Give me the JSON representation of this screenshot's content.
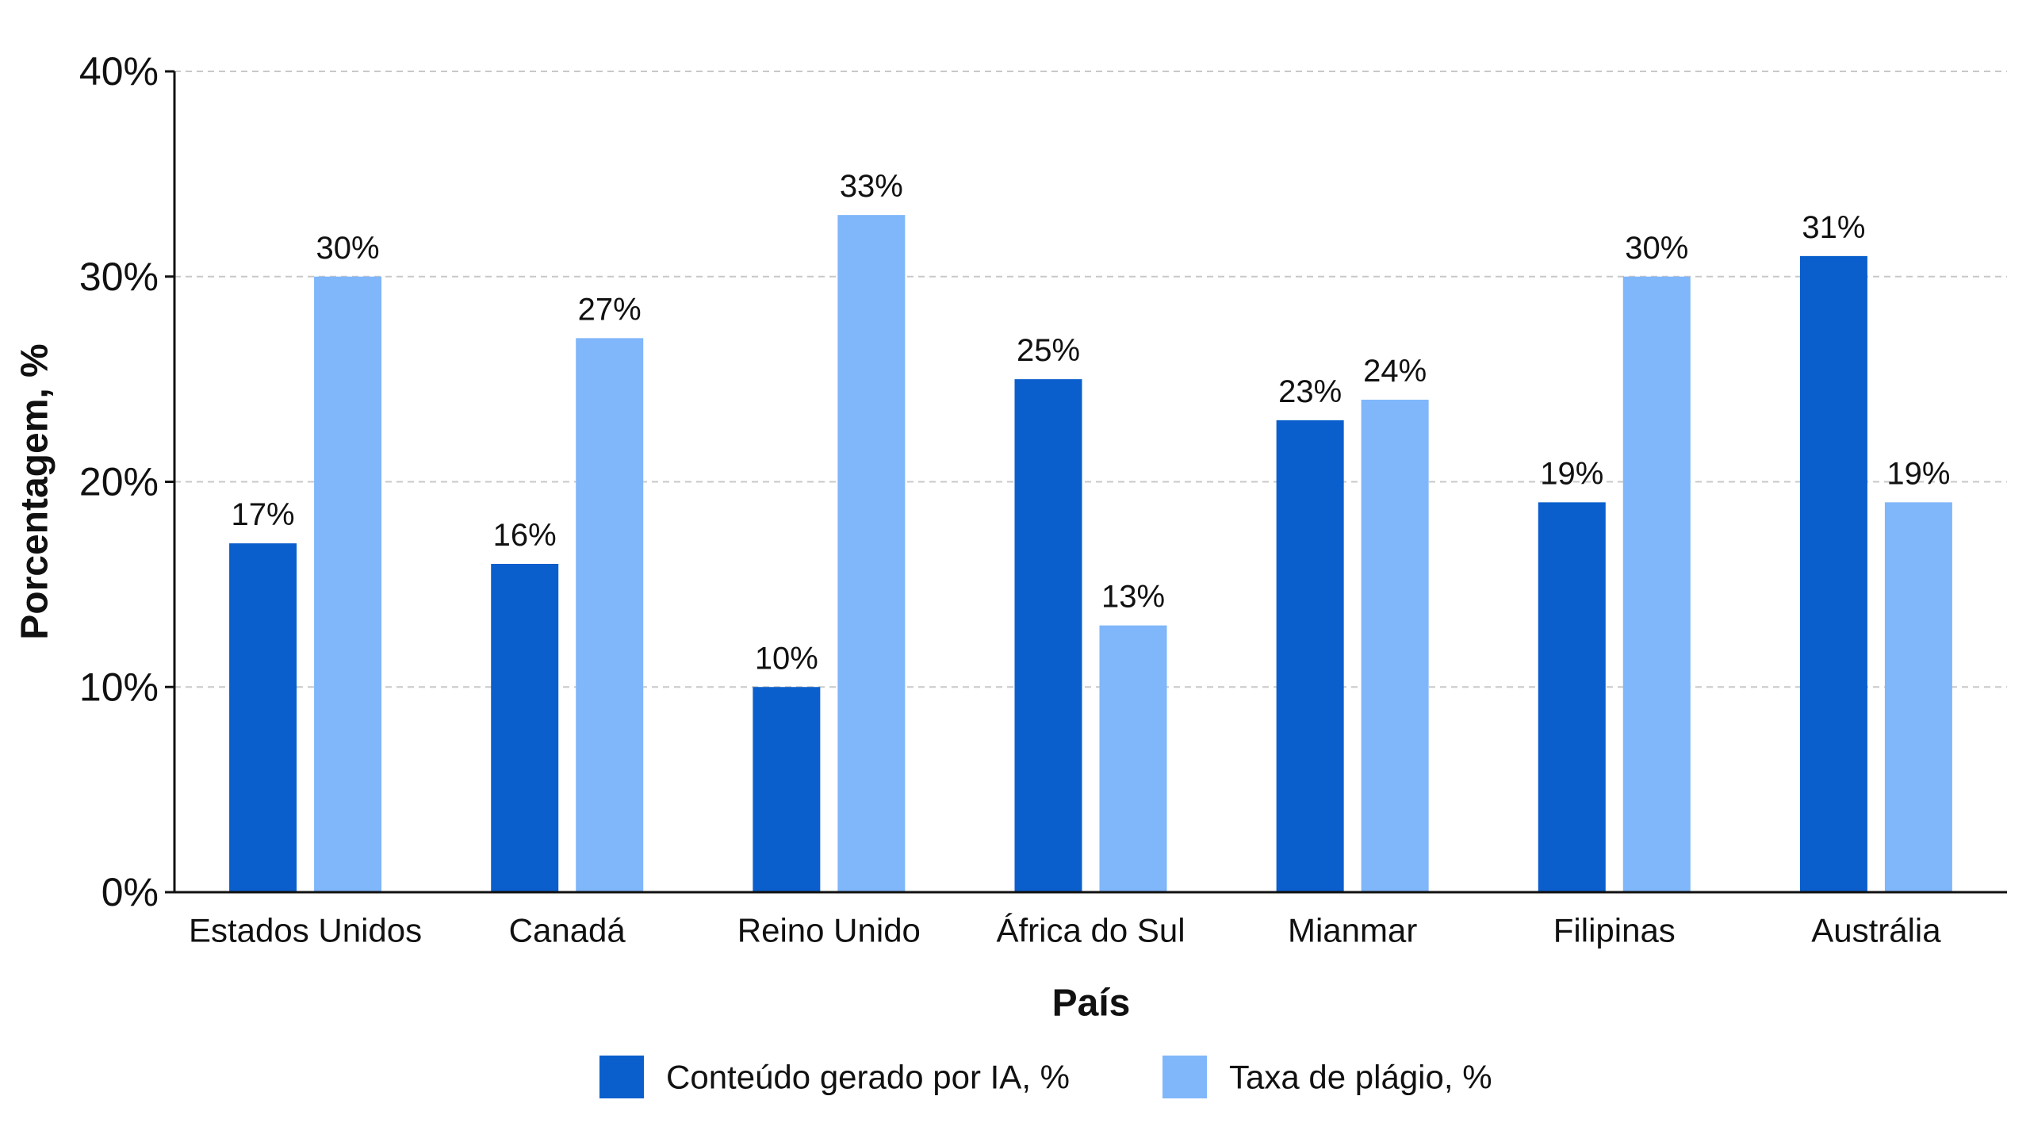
{
  "chart_data": {
    "type": "bar",
    "x_label": "País",
    "y_label": "Porcentagem, %",
    "categories": [
      "Estados Unidos",
      "Canadá",
      "Reino Unido",
      "África do Sul",
      "Mianmar",
      "Filipinas",
      "Austrália"
    ],
    "series": [
      {
        "name": "Conteúdo gerado por IA, %",
        "color": "#0a5fcc",
        "values": [
          17,
          16,
          10,
          25,
          23,
          19,
          31
        ],
        "value_labels": [
          "17%",
          "16%",
          "10%",
          "25%",
          "23%",
          "19%",
          "31%"
        ]
      },
      {
        "name": "Taxa de plágio, %",
        "color": "#80b6fa",
        "values": [
          30,
          27,
          33,
          13,
          24,
          30,
          19
        ],
        "value_labels": [
          "30%",
          "27%",
          "33%",
          "13%",
          "24%",
          "30%",
          "19%"
        ]
      }
    ],
    "ylim": [
      0,
      40
    ],
    "yticks": [
      {
        "value": 0,
        "label": "0%"
      },
      {
        "value": 10,
        "label": "10%"
      },
      {
        "value": 20,
        "label": "20%"
      },
      {
        "value": 30,
        "label": "30%"
      },
      {
        "value": 40,
        "label": "40%"
      }
    ],
    "grid": true,
    "legend": "bottom"
  }
}
